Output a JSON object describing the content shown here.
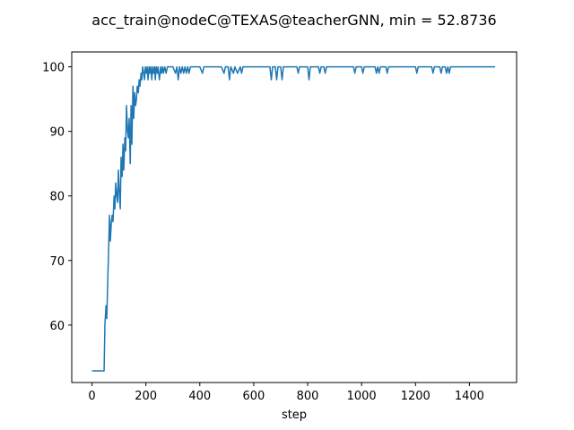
{
  "chart_data": {
    "type": "line",
    "title": "acc_train@nodeC@TEXAS@teacherGNN, min = 52.8736",
    "xlabel": "step",
    "ylabel": "",
    "xlim": [
      -75,
      1575
    ],
    "ylim": [
      51.1,
      102.3
    ],
    "xticks": [
      0,
      200,
      400,
      600,
      800,
      1000,
      1200,
      1400
    ],
    "yticks": [
      60,
      70,
      80,
      90,
      100
    ],
    "grid": false,
    "color": "#1f77b4",
    "series": [
      {
        "x": [
          0,
          45,
          48,
          52,
          55,
          58,
          62,
          65,
          68,
          72,
          75,
          78,
          82,
          85,
          88,
          92,
          95,
          98,
          102,
          105,
          108,
          112,
          115,
          118,
          122,
          125,
          128,
          132,
          135,
          138,
          142,
          145,
          148,
          152,
          155,
          158,
          162,
          165,
          168,
          172,
          175,
          178,
          182,
          185,
          188,
          192,
          195,
          198,
          202,
          205,
          208,
          212,
          215,
          218,
          222,
          225,
          228,
          232,
          235,
          238,
          242,
          245,
          250,
          255,
          258,
          262,
          265,
          270,
          275,
          280,
          300,
          310,
          315,
          320,
          325,
          330,
          335,
          340,
          345,
          350,
          355,
          360,
          365,
          400,
          410,
          415,
          420,
          480,
          490,
          495,
          505,
          510,
          515,
          525,
          530,
          540,
          550,
          555,
          560,
          660,
          665,
          670,
          680,
          685,
          690,
          700,
          705,
          710,
          760,
          765,
          770,
          800,
          805,
          810,
          840,
          845,
          850,
          860,
          865,
          870,
          970,
          975,
          980,
          1000,
          1005,
          1010,
          1050,
          1055,
          1060,
          1065,
          1070,
          1075,
          1090,
          1095,
          1100,
          1200,
          1205,
          1210,
          1260,
          1265,
          1270,
          1290,
          1295,
          1300,
          1310,
          1315,
          1320,
          1325,
          1330,
          1335,
          1495
        ],
        "y": [
          52.9,
          52.9,
          60,
          63,
          61,
          66,
          72,
          77,
          73,
          76,
          77,
          76,
          80,
          78,
          82,
          80,
          79,
          84,
          80,
          78,
          86,
          83,
          88,
          84,
          89,
          87,
          94,
          90,
          89,
          92,
          85,
          94,
          88,
          97,
          92,
          96,
          94,
          95,
          97,
          96,
          98,
          97,
          99,
          98,
          100,
          99,
          98,
          100,
          99,
          100,
          98,
          100,
          99,
          100,
          98,
          100,
          99,
          100,
          98,
          100,
          99,
          100,
          98,
          100,
          99,
          100,
          99,
          100,
          99,
          100,
          100,
          99,
          100,
          98,
          100,
          99,
          100,
          99,
          100,
          99,
          100,
          99,
          100,
          100,
          99,
          100,
          100,
          100,
          99,
          100,
          100,
          98,
          100,
          99,
          100,
          99,
          100,
          99,
          100,
          100,
          98,
          100,
          100,
          98,
          100,
          100,
          98,
          100,
          100,
          99,
          100,
          100,
          98,
          100,
          100,
          99,
          100,
          100,
          99,
          100,
          100,
          99,
          100,
          100,
          99,
          100,
          100,
          99,
          100,
          99,
          100,
          100,
          100,
          99,
          100,
          100,
          99,
          100,
          100,
          99,
          100,
          100,
          99,
          100,
          100,
          99,
          100,
          99,
          100,
          100,
          100
        ]
      }
    ]
  }
}
